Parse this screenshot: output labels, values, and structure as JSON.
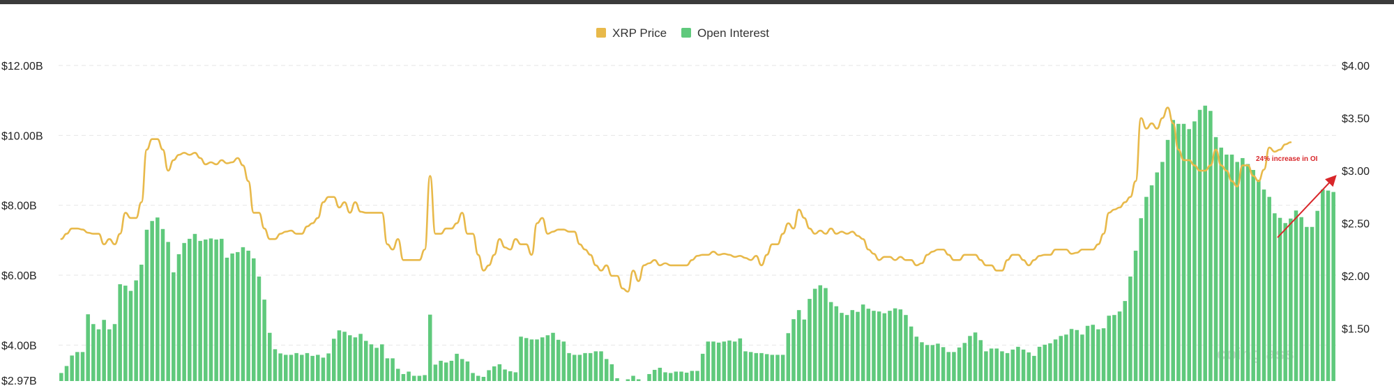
{
  "chart_data": {
    "type": "bar",
    "legend": [
      {
        "name": "XRP Price",
        "color": "#e8b94a"
      },
      {
        "name": "Open Interest",
        "color": "#5fc97c"
      }
    ],
    "legend_position": "top-center",
    "grid": true,
    "left_axis": {
      "unit": "USD billions",
      "ticks": [
        "$12.00B",
        "$10.00B",
        "$8.00B",
        "$6.00B",
        "$4.00B",
        "$2.97B"
      ],
      "tick_values": [
        12,
        10,
        8,
        6,
        4,
        2.97
      ],
      "range": [
        2.97,
        12
      ]
    },
    "right_axis": {
      "unit": "USD",
      "ticks": [
        "$4.00",
        "$3.50",
        "$3.00",
        "$2.50",
        "$2.00",
        "$1.50"
      ],
      "tick_values": [
        4,
        3.5,
        3,
        2.5,
        2,
        1.5
      ],
      "range": [
        1.0,
        4.0
      ]
    },
    "series": [
      {
        "name": "Open Interest",
        "type": "bar",
        "axis": "left",
        "values": [
          3.2,
          3.4,
          3.7,
          3.8,
          3.8,
          4.88,
          4.6,
          4.45,
          4.72,
          4.45,
          4.6,
          5.74,
          5.7,
          5.55,
          5.85,
          6.3,
          7.3,
          7.55,
          7.65,
          7.32,
          6.95,
          6.08,
          6.6,
          6.92,
          7.04,
          7.18,
          6.98,
          7.02,
          7.05,
          7.02,
          7.04,
          6.5,
          6.62,
          6.66,
          6.8,
          6.7,
          6.48,
          5.96,
          5.3,
          4.35,
          3.88,
          3.76,
          3.72,
          3.72,
          3.77,
          3.72,
          3.77,
          3.69,
          3.72,
          3.64,
          3.76,
          4.18,
          4.42,
          4.38,
          4.28,
          4.22,
          4.32,
          4.12,
          4.02,
          3.92,
          4.02,
          3.62,
          3.62,
          3.32,
          3.17,
          3.24,
          3.12,
          3.12,
          3.14,
          4.87,
          3.44,
          3.55,
          3.5,
          3.55,
          3.75,
          3.6,
          3.53,
          3.2,
          3.12,
          3.09,
          3.28,
          3.39,
          3.45,
          3.3,
          3.25,
          3.22,
          4.24,
          4.2,
          4.16,
          4.16,
          4.22,
          4.28,
          4.35,
          4.15,
          4.1,
          3.77,
          3.72,
          3.72,
          3.77,
          3.77,
          3.82,
          3.82,
          3.6,
          3.45,
          3.05,
          2.92,
          3.02,
          3.12,
          3.02,
          2.97,
          3.17,
          3.29,
          3.35,
          3.22,
          3.2,
          3.24,
          3.24,
          3.21,
          3.26,
          3.26,
          3.75,
          4.1,
          4.1,
          4.07,
          4.1,
          4.13,
          4.1,
          4.19,
          3.82,
          3.8,
          3.77,
          3.77,
          3.74,
          3.72,
          3.72,
          3.72,
          4.34,
          4.74,
          5.0,
          4.73,
          5.32,
          5.61,
          5.71,
          5.63,
          5.23,
          5.11,
          4.92,
          4.86,
          5.0,
          4.95,
          5.16,
          5.04,
          4.98,
          4.96,
          4.91,
          4.98,
          5.05,
          5.02,
          4.86,
          4.53,
          4.24,
          4.08,
          4.0,
          4.0,
          4.04,
          3.94,
          3.8,
          3.8,
          3.93,
          4.06,
          4.26,
          4.36,
          4.14,
          3.82,
          3.9,
          3.9,
          3.82,
          3.77,
          3.87,
          3.95,
          3.87,
          3.79,
          3.69,
          3.95,
          4.01,
          4.05,
          4.16,
          4.26,
          4.3,
          4.46,
          4.43,
          4.3,
          4.55,
          4.58,
          4.45,
          4.48,
          4.84,
          4.86,
          4.96,
          5.26,
          5.96,
          6.7,
          7.63,
          8.24,
          8.57,
          8.94,
          9.24,
          9.87,
          10.44,
          10.33,
          10.33,
          10.18,
          10.4,
          10.73,
          10.85,
          10.7,
          9.95,
          9.65,
          9.45,
          9.45,
          9.24,
          9.35,
          9.18,
          9.01,
          8.73,
          8.45,
          8.24,
          7.77,
          7.64,
          7.49,
          7.62,
          7.85,
          7.66,
          7.38,
          7.38,
          7.84,
          8.45,
          8.42,
          8.38
        ]
      },
      {
        "name": "XRP Price",
        "type": "line",
        "axis": "right",
        "values": [
          2.35,
          2.4,
          2.45,
          2.45,
          2.44,
          2.41,
          2.4,
          2.4,
          2.3,
          2.35,
          2.3,
          2.4,
          2.6,
          2.55,
          2.55,
          2.7,
          3.2,
          3.3,
          3.3,
          3.2,
          3.0,
          3.1,
          3.15,
          3.17,
          3.15,
          3.17,
          3.12,
          3.06,
          3.08,
          3.06,
          3.1,
          3.07,
          3.08,
          3.12,
          3.05,
          2.9,
          2.6,
          2.6,
          2.45,
          2.35,
          2.35,
          2.4,
          2.42,
          2.43,
          2.4,
          2.4,
          2.47,
          2.5,
          2.55,
          2.7,
          2.75,
          2.75,
          2.65,
          2.7,
          2.6,
          2.7,
          2.61,
          2.6,
          2.6,
          2.6,
          2.6,
          2.3,
          2.25,
          2.35,
          2.15,
          2.15,
          2.15,
          2.15,
          2.25,
          2.95,
          2.4,
          2.4,
          2.45,
          2.45,
          2.5,
          2.6,
          2.4,
          2.4,
          2.2,
          2.05,
          2.1,
          2.2,
          2.35,
          2.27,
          2.25,
          2.35,
          2.3,
          2.3,
          2.2,
          2.5,
          2.55,
          2.4,
          2.42,
          2.44,
          2.44,
          2.42,
          2.42,
          2.3,
          2.25,
          2.2,
          2.1,
          2.05,
          2.1,
          2.0,
          2.0,
          1.88,
          1.85,
          2.05,
          1.95,
          2.1,
          2.12,
          2.15,
          2.1,
          2.12,
          2.1,
          2.1,
          2.1,
          2.1,
          2.15,
          2.19,
          2.2,
          2.2,
          2.23,
          2.2,
          2.21,
          2.2,
          2.18,
          2.19,
          2.17,
          2.15,
          2.19,
          2.1,
          2.2,
          2.3,
          2.3,
          2.4,
          2.5,
          2.45,
          2.63,
          2.55,
          2.45,
          2.4,
          2.43,
          2.4,
          2.45,
          2.4,
          2.42,
          2.4,
          2.42,
          2.38,
          2.35,
          2.25,
          2.21,
          2.15,
          2.18,
          2.18,
          2.15,
          2.18,
          2.15,
          2.15,
          2.1,
          2.12,
          2.2,
          2.23,
          2.25,
          2.25,
          2.2,
          2.15,
          2.15,
          2.2,
          2.2,
          2.2,
          2.15,
          2.1,
          2.1,
          2.05,
          2.05,
          2.15,
          2.2,
          2.2,
          2.15,
          2.1,
          2.15,
          2.19,
          2.2,
          2.2,
          2.25,
          2.25,
          2.25,
          2.21,
          2.22,
          2.25,
          2.25,
          2.25,
          2.3,
          2.4,
          2.6,
          2.63,
          2.65,
          2.7,
          2.75,
          2.9,
          3.5,
          3.4,
          3.45,
          3.4,
          3.5,
          3.6,
          3.45,
          3.2,
          3.1,
          3.1,
          3.05,
          3.0,
          3.0,
          3.05,
          3.2,
          3.05,
          3.0,
          2.9,
          2.85,
          3.05,
          3.05,
          2.95,
          2.9,
          3.01,
          3.22,
          3.18,
          3.2,
          3.25,
          3.27
        ]
      }
    ],
    "annotations": [
      {
        "text": "24% increase in OI",
        "color": "#d8262a"
      }
    ],
    "watermark": "coinglass"
  }
}
